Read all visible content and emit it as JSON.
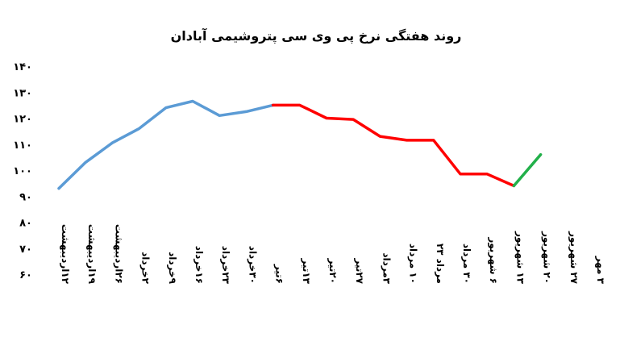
{
  "chart_data": {
    "type": "line",
    "title": "روند هفتگی نرخ پی وی سی پتروشیمی آبادان",
    "xlabel": "",
    "ylabel": "",
    "ylim": [
      60,
      140
    ],
    "yticks": [
      "۱۴۰",
      "۱۳۰",
      "۱۲۰",
      "۱۱۰",
      "۱۰۰",
      "۹۰",
      "۸۰",
      "۷۰",
      "۶۰"
    ],
    "ytick_values": [
      140,
      130,
      120,
      110,
      100,
      90,
      80,
      70,
      60
    ],
    "grid": false,
    "legend": "none",
    "categories": [
      "۱۲اردیبهشت",
      "۱۹اردیبهشت",
      "۲۶اردیبهشت",
      "۲خرداد",
      "۹خرداد",
      "۱۶خرداد",
      "۲۳خرداد",
      "۳۰خرداد",
      "۶تیر",
      "۱۳تیر",
      "۲۰تیر",
      "۲۷تیر",
      "۳مرداد",
      "۱۰ مرداد",
      "مرداد ۲۳",
      "۳۰ مرداد",
      "۶ شهریور",
      "۱۳ شهریور",
      "۲۰ شهریور",
      "۲۷ شهریور",
      "۳ مهر"
    ],
    "values": [
      93,
      103,
      110.5,
      116,
      124,
      126.5,
      121,
      122.5,
      125,
      125,
      120,
      119.5,
      113,
      111.5,
      111.5,
      98.5,
      98.5,
      94,
      106,
      null,
      null
    ],
    "segments": [
      {
        "color": "#5b9bd5",
        "from": 0,
        "to": 8
      },
      {
        "color": "#ff0000",
        "from": 8,
        "to": 17
      },
      {
        "color": "#22b04a",
        "from": 17,
        "to": 18
      }
    ]
  }
}
